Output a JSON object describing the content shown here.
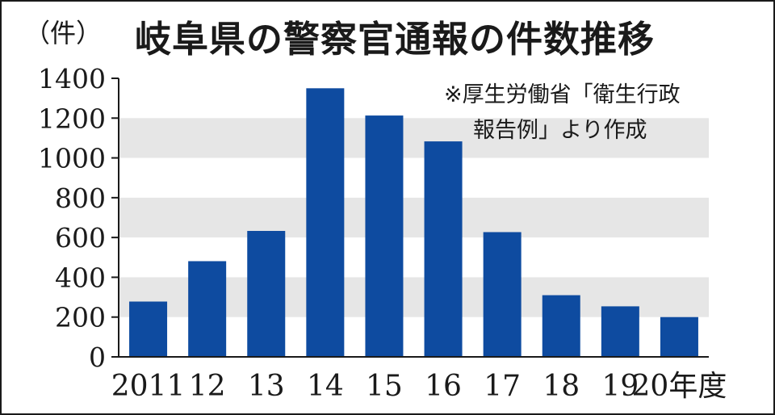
{
  "chart_data": {
    "type": "bar",
    "title": "岐阜県の警察官通報の件数推移",
    "unit_label": "（件）",
    "source_note": [
      "※厚生労働省「衛生行政",
      "報告例」より作成"
    ],
    "categories": [
      "2011",
      "12",
      "13",
      "14",
      "15",
      "16",
      "17",
      "18",
      "19",
      "20年度"
    ],
    "values": [
      278,
      481,
      633,
      1350,
      1213,
      1083,
      627,
      310,
      254,
      200
    ],
    "ylim": [
      0,
      1400
    ],
    "yticks": [
      0,
      200,
      400,
      600,
      800,
      1000,
      1200,
      1400
    ],
    "grid": "alternating bands",
    "colors": {
      "bar": "#0e4ba0",
      "band": "#e6e6e6",
      "axis": "#1a1a1a"
    }
  }
}
